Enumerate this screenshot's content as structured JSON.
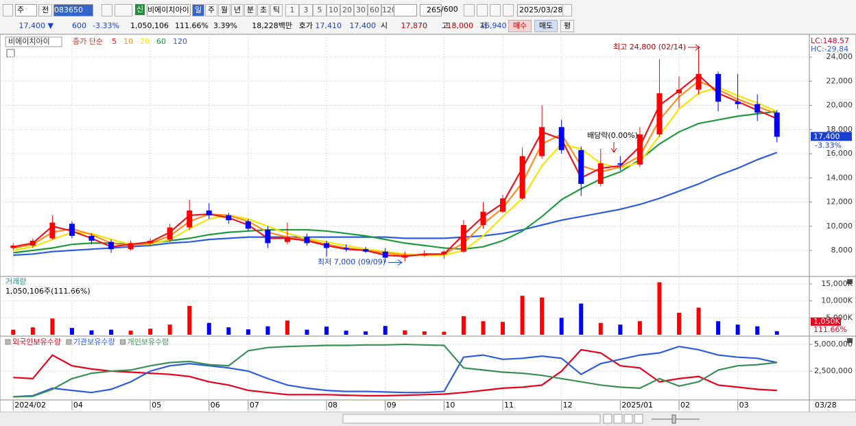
{
  "toolbar": {
    "market": "주",
    "prev": "전",
    "code": "083650",
    "badge": "신",
    "name": "비에이치아이",
    "periods": [
      "일",
      "주",
      "월",
      "년",
      "분",
      "초",
      "틱"
    ],
    "intervals": [
      "1",
      "3",
      "5",
      "10",
      "20",
      "30",
      "60",
      "120"
    ],
    "count": "265",
    "max": "/600",
    "date": "2025/03/28"
  },
  "quote": {
    "price": "17,400 ▼",
    "change": "600",
    "change_pct": "-3.33%",
    "volume": "1,050,106",
    "volume_ratio": "111.66%",
    "turnover": "3.39%",
    "amount": "18,228백만",
    "ask_label": "호가",
    "ask": "17,410",
    "bid": "17,400",
    "open_label": "시",
    "open": "17,870",
    "high_label": "고",
    "high": "18,000",
    "low_label": "저",
    "low": "16,940",
    "buy": "매수",
    "sell": "매도",
    "avg": "평"
  },
  "chart_data": [
    {
      "type": "candlestick",
      "title": "비에이치아이",
      "legend_prefix": "종가 단순",
      "categories": [
        "2024/02",
        null,
        null,
        "04",
        null,
        null,
        null,
        "05",
        null,
        null,
        "06",
        null,
        "07",
        null,
        null,
        null,
        "08",
        null,
        null,
        "09",
        null,
        null,
        "10",
        null,
        null,
        "11",
        null,
        null,
        "12",
        null,
        null,
        "2025/01",
        null,
        null,
        "02",
        null,
        null,
        "03",
        null,
        null
      ],
      "end_date_label": "03/28",
      "open": [
        8200,
        8400,
        9000,
        10200,
        9200,
        8700,
        8100,
        8600,
        8900,
        9900,
        11300,
        10900,
        10400,
        9700,
        8700,
        9100,
        8600,
        8200,
        8100,
        7900,
        7400,
        7600,
        7700,
        7900,
        10100,
        11200,
        12300,
        15800,
        18200,
        16300,
        13500,
        15200,
        15100,
        17600,
        21000,
        21300,
        22600,
        20300,
        20100,
        19400
      ],
      "high": [
        8600,
        9000,
        10900,
        10400,
        9400,
        8900,
        8800,
        9000,
        10200,
        12200,
        11900,
        11100,
        10600,
        10000,
        10300,
        9400,
        8800,
        8500,
        8300,
        8200,
        7900,
        8000,
        8000,
        10500,
        12000,
        12600,
        16500,
        20000,
        18800,
        16600,
        16400,
        15800,
        18200,
        23800,
        22400,
        24800,
        22800,
        22600,
        20900,
        19600
      ],
      "low": [
        8000,
        8200,
        8900,
        9000,
        8500,
        7800,
        8000,
        8400,
        8700,
        9700,
        10600,
        10200,
        9600,
        8200,
        8500,
        8400,
        7500,
        7900,
        7800,
        7000,
        7100,
        7500,
        7300,
        7800,
        9800,
        11100,
        12200,
        15600,
        16000,
        12500,
        13300,
        14600,
        14900,
        17400,
        19800,
        20900,
        19500,
        19700,
        18700,
        16940
      ],
      "close": [
        8400,
        8800,
        10300,
        9200,
        8800,
        8100,
        8600,
        8800,
        9900,
        11300,
        10900,
        10500,
        9800,
        8600,
        9100,
        8600,
        8200,
        8100,
        7900,
        7400,
        7600,
        7700,
        7900,
        10100,
        11200,
        12300,
        15800,
        18200,
        16300,
        13500,
        15200,
        15100,
        17600,
        21000,
        21300,
        22600,
        20300,
        20100,
        19400,
        17400
      ],
      "up_color": "#ff0000",
      "down_color": "#0000ff",
      "moving_averages": [
        {
          "name": "5",
          "color": "#e8141e",
          "values": [
            8300,
            8600,
            10000,
            9600,
            9000,
            8300,
            8500,
            8700,
            9500,
            10900,
            11000,
            10700,
            10100,
            9000,
            9000,
            8800,
            8400,
            8100,
            8000,
            7600,
            7500,
            7700,
            7700,
            9300,
            10800,
            11900,
            14800,
            17800,
            17200,
            14000,
            14800,
            15000,
            16600,
            20000,
            21200,
            22500,
            21000,
            20300,
            19600,
            18900
          ]
        },
        {
          "name": "10",
          "color": "#ff8c1a",
          "values": [
            8200,
            8500,
            9500,
            9800,
            9300,
            8600,
            8400,
            8600,
            9200,
            10400,
            11000,
            10900,
            10400,
            9500,
            9100,
            8900,
            8500,
            8200,
            8000,
            7800,
            7600,
            7600,
            7700,
            8600,
            10200,
            11500,
            13600,
            16800,
            17600,
            15000,
            14500,
            14900,
            15800,
            18800,
            20700,
            22000,
            21300,
            20500,
            19900,
            19300
          ]
        },
        {
          "name": "20",
          "color": "#f5e600",
          "values": [
            8000,
            8300,
            8900,
            9500,
            9400,
            8900,
            8500,
            8500,
            8900,
            9800,
            10600,
            10900,
            10600,
            10000,
            9400,
            9000,
            8700,
            8400,
            8100,
            7900,
            7700,
            7600,
            7600,
            8000,
            9200,
            10800,
            12300,
            15000,
            16800,
            16400,
            15200,
            14800,
            15300,
            17500,
            19700,
            21000,
            21500,
            20800,
            20200,
            19500
          ]
        },
        {
          "name": "60",
          "color": "#1f9a3a",
          "values": [
            7800,
            8000,
            8200,
            8500,
            8600,
            8600,
            8500,
            8600,
            8800,
            9000,
            9300,
            9500,
            9600,
            9700,
            9700,
            9700,
            9600,
            9400,
            9200,
            8900,
            8600,
            8400,
            8200,
            8100,
            8300,
            8800,
            9600,
            10800,
            12200,
            13100,
            13900,
            14500,
            15500,
            16800,
            17800,
            18500,
            18800,
            19100,
            19300,
            19500
          ]
        },
        {
          "name": "120",
          "color": "#2d5be3",
          "values": [
            7600,
            7700,
            7900,
            8000,
            8100,
            8200,
            8300,
            8400,
            8600,
            8700,
            8900,
            9000,
            9100,
            9100,
            9100,
            9100,
            9100,
            9100,
            9100,
            9100,
            9000,
            9000,
            9000,
            9100,
            9200,
            9400,
            9700,
            10100,
            10500,
            10800,
            11100,
            11400,
            11800,
            12300,
            12900,
            13500,
            14200,
            14800,
            15500,
            16100
          ]
        }
      ],
      "ylim": [
        5900,
        25650
      ],
      "yticks": [
        {
          "value": 8000,
          "label": "8,000"
        },
        {
          "value": 10000,
          "label": "10,000"
        },
        {
          "value": 12000,
          "label": "12,000"
        },
        {
          "value": 14000,
          "label": "14,000"
        },
        {
          "value": 16000,
          "label": "16,000"
        },
        {
          "value": 18000,
          "label": "18,000"
        },
        {
          "value": 20000,
          "label": "20,000"
        },
        {
          "value": 22000,
          "label": "22,000"
        },
        {
          "value": 24000,
          "label": "24,000"
        }
      ],
      "grid": true,
      "lc_label": "LC:148.57",
      "hc_label": "HC:-29.84",
      "last_price": {
        "value": 17400,
        "label": "17,400"
      },
      "last_change": "-3.33%",
      "high_note": {
        "value": 24800,
        "label": "최고 24,800 (02/14)"
      },
      "low_note": {
        "value": 7000,
        "label": "최저 7,000 (09/09)"
      },
      "dividend_note": "배당락(0.00%)"
    },
    {
      "type": "bar",
      "title": "거래량",
      "subtitle": "1,050,106주(111.66%)",
      "values": [
        1500,
        2200,
        4800,
        2000,
        1300,
        1500,
        1200,
        1800,
        3000,
        8500,
        3500,
        2200,
        1600,
        2500,
        4200,
        1500,
        2400,
        1200,
        1000,
        2600,
        1300,
        1000,
        900,
        5500,
        4000,
        3800,
        11500,
        11000,
        5000,
        9200,
        3500,
        3000,
        4000,
        15500,
        6500,
        8000,
        4000,
        3000,
        2500,
        1050
      ],
      "ylim": [
        0,
        16800
      ],
      "yticks": [
        {
          "value": 5000,
          "label": "5,000K"
        },
        {
          "value": 10000,
          "label": "10,000K"
        },
        {
          "value": 15000,
          "label": "15,000K"
        }
      ],
      "grid": true,
      "last_value": {
        "value": 1050,
        "label": "1,050K"
      },
      "last_ratio": "111.66%"
    },
    {
      "type": "line",
      "series": [
        {
          "name": "외국인보유수량",
          "color": "#e8001c",
          "values": [
            1900000,
            1800000,
            4000000,
            3000000,
            2700000,
            2500000,
            2400000,
            2300000,
            2200000,
            2000000,
            1500000,
            1200000,
            700000,
            500000,
            300000,
            300000,
            300000,
            250000,
            200000,
            200000,
            250000,
            300000,
            350000,
            500000,
            700000,
            900000,
            1000000,
            1200000,
            2500000,
            4500000,
            4200000,
            3000000,
            2800000,
            1500000,
            1800000,
            2000000,
            1200000,
            1000000,
            800000,
            700000
          ]
        },
        {
          "name": "기관보유수량",
          "color": "#2d5be3",
          "values": [
            100000,
            200000,
            900000,
            700000,
            500000,
            800000,
            1500000,
            2500000,
            3000000,
            3200000,
            3000000,
            2800000,
            2500000,
            1800000,
            1200000,
            900000,
            700000,
            600000,
            600000,
            550000,
            500000,
            500000,
            600000,
            3800000,
            4000000,
            3600000,
            3700000,
            3900000,
            3700000,
            2200000,
            3200000,
            3600000,
            4000000,
            4200000,
            4800000,
            4500000,
            4000000,
            3800000,
            3700000,
            3300000
          ]
        },
        {
          "name": "개인보유수량",
          "color": "#3a8f55",
          "values": [
            100000,
            150000,
            800000,
            1800000,
            2300000,
            2500000,
            2600000,
            3000000,
            3300000,
            3400000,
            3100000,
            3000000,
            4400000,
            4700000,
            4800000,
            4850000,
            4900000,
            4900000,
            4950000,
            4950000,
            5000000,
            4950000,
            4900000,
            2800000,
            2600000,
            2400000,
            2300000,
            2100000,
            1800000,
            1500000,
            1200000,
            1000000,
            900000,
            1800000,
            1100000,
            1500000,
            2600000,
            3000000,
            3100000,
            3300000
          ]
        }
      ],
      "ylim": [
        -130000,
        5640000
      ],
      "yticks": [
        {
          "value": 2500000,
          "label": "2,500,000"
        },
        {
          "value": 5000000,
          "label": "5,000,000"
        }
      ],
      "grid": true
    }
  ]
}
